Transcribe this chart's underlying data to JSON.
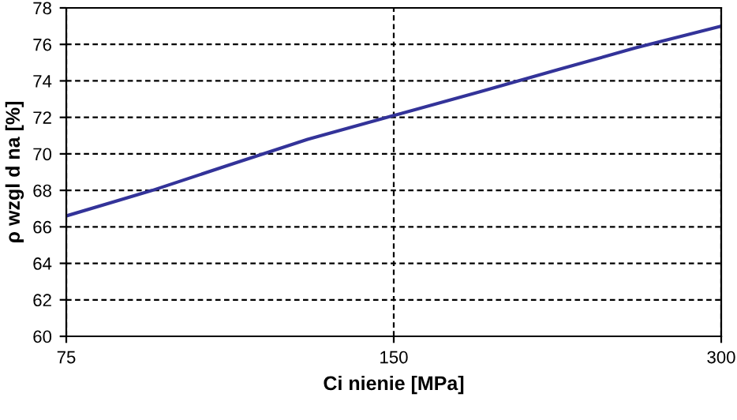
{
  "chart_data": {
    "type": "line",
    "xlabel": "Ci nienie [MPa]",
    "ylabel": "ρ wzgl d na [%]",
    "series": [
      {
        "color": "#333399",
        "x": [
          75,
          90,
          106,
          125,
          150,
          180,
          212,
          250,
          300
        ],
        "values": [
          66.6,
          68.0,
          69.4,
          70.8,
          72.1,
          73.4,
          74.6,
          75.8,
          77.0
        ]
      }
    ],
    "log": "x",
    "xlim": [
      75,
      300
    ],
    "xticks": [
      75,
      150,
      300
    ],
    "ylim": [
      60,
      78
    ],
    "yticks": [
      60,
      62,
      64,
      66,
      68,
      70,
      72,
      74,
      76,
      78
    ],
    "grid": true,
    "marker": "none",
    "line_style": "solid"
  }
}
